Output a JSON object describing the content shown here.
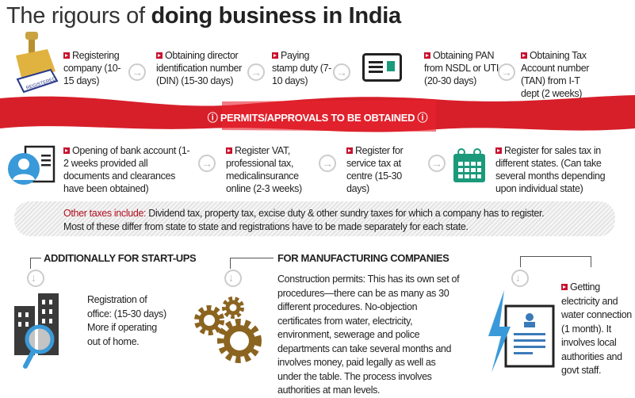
{
  "title": {
    "regular": "The rigours of ",
    "bold": "doing business in India"
  },
  "row1": [
    {
      "text": "Registering company (10-15 days)"
    },
    {
      "text": "Obtaining director identification number (DIN) (15-30 days)"
    },
    {
      "text": "Paying stamp duty (7-10 days)"
    },
    {
      "text": "Obtaining PAN from NSDL or UTI (20-30 days)"
    },
    {
      "text": "Obtaining Tax Account number (TAN) from I-T dept (2 weeks)"
    }
  ],
  "stamp_label": "REGISTERED",
  "banner": {
    "text": "PERMITS/APPROVALS TO BE OBTAINED",
    "color": "#d71f2a"
  },
  "row2": [
    {
      "text": "Opening of bank account (1-2 weeks provided all documents and clearances have been obtained)"
    },
    {
      "text": "Register VAT, professional tax, medicalinsurance online (2-3 weeks)"
    },
    {
      "text": "Register for service tax at centre (15-30 days)"
    },
    {
      "text": "Register for sales tax in different states. (Can take several months depending upon individual state)"
    }
  ],
  "other_taxes": {
    "label": "Other taxes include:",
    "line1": " Dividend tax, property tax, excise duty & other sundry taxes for which a company has to register.",
    "line2": "Most of these differ from state to state and registrations have to be made separately for each state."
  },
  "startups": {
    "heading": "ADDITIONALLY FOR START-UPS",
    "text": "Registration of office: (15-30 days) More if operating out of home."
  },
  "manufacturing": {
    "heading": "FOR MANUFACTURING COMPANIES",
    "text": "Construction permits: This has its own set of procedures—there can be as many as 30 different procedures. No-objection certificates from water, electricity, environment, sewerage and police departments can take several months and involves money, paid legally as well as under the table. The process involves authorities at man levels."
  },
  "utilities": {
    "text": "Getting electricity and water connection (1 month). It involves local authorities and govt staff."
  },
  "colors": {
    "accent": "#c8102e",
    "calendar": "#1a9a7a",
    "gear": "#8b6420",
    "blue": "#3a9ad9"
  }
}
